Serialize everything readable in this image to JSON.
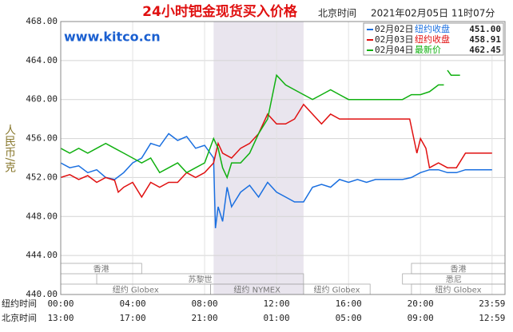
{
  "chart_data": {
    "type": "line",
    "title": "24小时钯金现货买入价格",
    "subtitle_label": "北京时间",
    "timestamp": "2021年02月05日 11时07分",
    "watermark": "www.kitco.cn",
    "y_label": "人民币/克",
    "x_row_label": "纽约时间",
    "x2_row_label": "北京时间",
    "xlim": [
      0,
      24.7
    ],
    "ylim": [
      440,
      468
    ],
    "yticks": [
      {
        "value": 440,
        "label": "440.00"
      },
      {
        "value": 444,
        "label": "444.00"
      },
      {
        "value": 448,
        "label": "448.00"
      },
      {
        "value": 452,
        "label": "452.00"
      },
      {
        "value": 456,
        "label": "456.00"
      },
      {
        "value": 460,
        "label": "460.00"
      },
      {
        "value": 464,
        "label": "464.00"
      },
      {
        "value": 468,
        "label": "468.00"
      }
    ],
    "xticks": [
      {
        "value": 0,
        "label": "00:00"
      },
      {
        "value": 4,
        "label": "04:00"
      },
      {
        "value": 8,
        "label": "08:00"
      },
      {
        "value": 12,
        "label": "12:00"
      },
      {
        "value": 16,
        "label": "16:00"
      },
      {
        "value": 20,
        "label": "20:00"
      },
      {
        "value": 23.98,
        "label": "23:59"
      }
    ],
    "x2_tick_labels": [
      "13:00",
      "17:00",
      "21:00",
      "01:00",
      "05:00",
      "09:00",
      "12:59"
    ],
    "grid": true,
    "shade": [
      8.5,
      13.5
    ],
    "session_rows": [
      [
        {
          "name": "香港",
          "start": 0,
          "end": 4.5
        },
        {
          "name": "香港",
          "start": 19.5,
          "end": 24.7
        }
      ],
      [
        {
          "name": "苏黎世",
          "start": 2,
          "end": 13.5
        },
        {
          "name": "悉尼",
          "start": 19,
          "end": 24.7
        }
      ],
      [
        {
          "name": "纽约 Globex",
          "start": 0,
          "end": 8.33
        },
        {
          "name": "纽约 NYMEX",
          "start": 8.33,
          "end": 13.5
        },
        {
          "name": "纽约 Globex",
          "start": 13.5,
          "end": 17.2
        },
        {
          "name": "纽约 Globex",
          "start": 19.5,
          "end": 24.7
        }
      ]
    ],
    "series": [
      {
        "name": "02月02日",
        "note": "纽约收盘",
        "legend_value": {
          "value": 451.0,
          "label": "451.00"
        },
        "color": "#1a6fe0",
        "x": [
          0,
          0.5,
          1,
          1.5,
          2,
          2.5,
          3,
          3.5,
          4,
          4.5,
          5,
          5.5,
          6,
          6.5,
          7,
          7.5,
          8,
          8.5,
          8.6,
          8.75,
          9,
          9.25,
          9.5,
          10,
          10.5,
          11,
          11.5,
          12,
          12.5,
          13,
          13.5,
          14,
          14.5,
          15,
          15.5,
          16,
          16.5,
          17,
          17.5,
          18,
          19,
          19.5,
          20,
          20.5,
          21,
          21.5,
          22,
          22.5,
          23,
          23.98
        ],
        "values": [
          453.5,
          453.0,
          453.2,
          452.5,
          452.8,
          452.0,
          451.8,
          452.5,
          453.5,
          454.0,
          455.5,
          455.2,
          456.5,
          455.8,
          456.2,
          455.0,
          455.3,
          454.0,
          446.8,
          449.0,
          447.5,
          451.0,
          449.0,
          450.5,
          451.2,
          450.0,
          451.5,
          450.5,
          450.0,
          449.5,
          449.5,
          451.0,
          451.3,
          451.0,
          451.8,
          451.5,
          451.8,
          451.5,
          451.8,
          451.8,
          451.8,
          452.0,
          452.5,
          452.8,
          452.8,
          452.5,
          452.5,
          452.8,
          452.8,
          452.8
        ]
      },
      {
        "name": "02月03日",
        "note": "纽约收盘",
        "legend_value": {
          "value": 458.91,
          "label": "458.91"
        },
        "color": "#e01010",
        "x": [
          0,
          0.5,
          1,
          1.5,
          2,
          2.5,
          3,
          3.2,
          3.5,
          4,
          4.5,
          5,
          5.5,
          6,
          6.5,
          7,
          7.5,
          8,
          8.5,
          8.75,
          9,
          9.5,
          10,
          10.5,
          11,
          11.5,
          12,
          12.5,
          13,
          13.5,
          14,
          14.5,
          15,
          15.5,
          16,
          16.5,
          17,
          18,
          19,
          19.4,
          19.8,
          20,
          20.3,
          20.5,
          21,
          21.5,
          22,
          22.5,
          23,
          23.98
        ],
        "values": [
          452.0,
          452.3,
          451.8,
          452.2,
          451.5,
          452.0,
          451.7,
          450.5,
          451.0,
          451.5,
          450.0,
          451.5,
          451.0,
          451.5,
          451.5,
          452.5,
          452.0,
          452.5,
          453.5,
          455.5,
          454.5,
          454.0,
          455.0,
          455.5,
          456.5,
          458.5,
          457.5,
          457.5,
          458.0,
          459.5,
          458.5,
          457.5,
          458.5,
          458.0,
          458.0,
          458.0,
          458.0,
          458.0,
          458.0,
          458.0,
          454.5,
          456.0,
          455.0,
          453.0,
          453.5,
          453.0,
          453.0,
          454.5,
          454.5,
          454.5
        ]
      },
      {
        "name": "02月04日",
        "note": "最新价",
        "legend_value": {
          "value": 462.45,
          "label": "462.45"
        },
        "color": "#10b010",
        "x": [
          0,
          0.5,
          1,
          1.5,
          2,
          2.5,
          3,
          3.5,
          4,
          4.5,
          5,
          5.5,
          6,
          6.5,
          7,
          7.5,
          8,
          8.5,
          8.75,
          9,
          9.25,
          9.5,
          10,
          10.5,
          11,
          11.5,
          12,
          12.5,
          13,
          13.5,
          14,
          14.5,
          15,
          15.5,
          16,
          17,
          18,
          19,
          19.5,
          20,
          20.5,
          21,
          21.3,
          21.4,
          21.5,
          21.7,
          22,
          22.2
        ],
        "values": [
          455.0,
          454.5,
          455.0,
          454.5,
          455.0,
          455.5,
          455.0,
          454.5,
          454.0,
          453.5,
          454.0,
          452.5,
          453.0,
          453.5,
          452.5,
          453.0,
          453.5,
          456.0,
          455.0,
          453.0,
          452.0,
          453.5,
          453.5,
          454.5,
          456.5,
          458.0,
          462.5,
          461.5,
          461.0,
          460.5,
          460.0,
          460.5,
          461.0,
          460.5,
          460.0,
          460.0,
          460.0,
          460.0,
          460.5,
          460.5,
          460.8,
          461.5,
          461.5,
          null,
          463.0,
          462.5,
          462.5,
          462.5
        ]
      }
    ]
  }
}
